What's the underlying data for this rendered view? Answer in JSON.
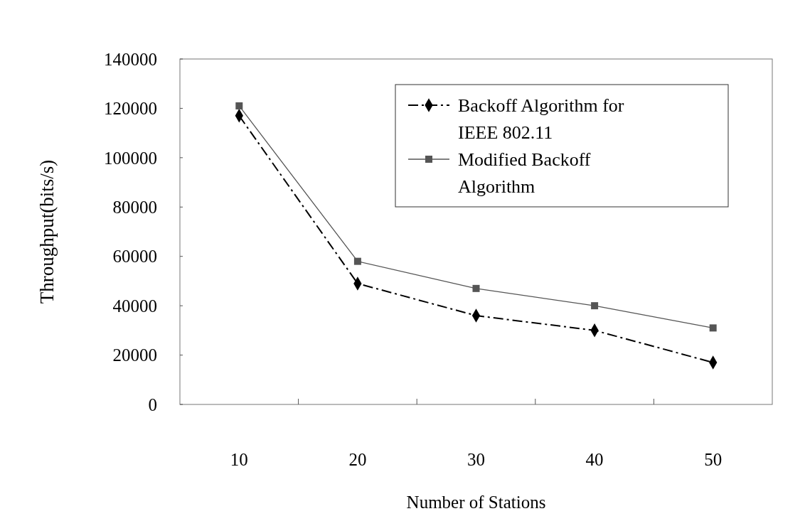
{
  "chart_data": {
    "type": "line",
    "xlabel": "Number of Stations",
    "ylabel": "Throughput(bits/s)",
    "categories": [
      "10",
      "20",
      "30",
      "40",
      "50"
    ],
    "series": [
      {
        "name": "Backoff Algorithm for IEEE 802.11",
        "color": "#000000",
        "marker": "diamond",
        "line_style": "dashed",
        "values": [
          117000,
          49000,
          36000,
          30000,
          17000
        ]
      },
      {
        "name": "Modified Backoff Algorithm",
        "color": "#555555",
        "marker": "square",
        "line_style": "solid",
        "values": [
          121000,
          58000,
          47000,
          40000,
          31000
        ]
      }
    ],
    "ylim": [
      0,
      140000
    ],
    "yticks": [
      0,
      20000,
      40000,
      60000,
      80000,
      100000,
      120000,
      140000
    ],
    "grid": false,
    "legend": "top right"
  }
}
